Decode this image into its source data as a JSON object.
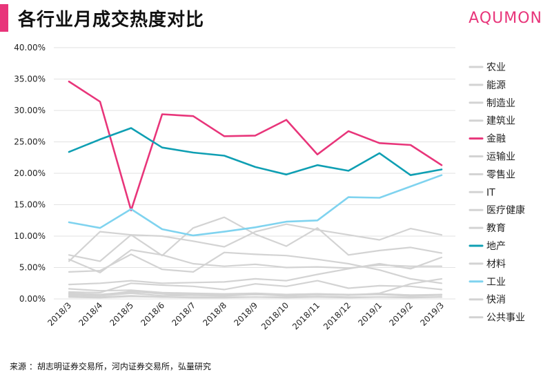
{
  "header": {
    "title": "各行业月成交热度对比",
    "brand": "AQUMON"
  },
  "footer": {
    "source": "来源 ：胡志明证券交易所，河内证券交易所，弘量研究"
  },
  "colors": {
    "accent": "#e8357a",
    "finance": "#e8357a",
    "realestate": "#0f9fb3",
    "industry": "#7fd3ef",
    "other": "#d3d3d3",
    "grid": "#e2e2e2"
  },
  "chart_data": {
    "type": "line",
    "categories": [
      "2018/3",
      "2018/4",
      "2018/5",
      "2018/6",
      "2018/7",
      "2018/8",
      "2018/9",
      "2018/10",
      "2018/11",
      "2018/12",
      "2019/1",
      "2019/2",
      "2019/3"
    ],
    "ylim": [
      0,
      40
    ],
    "yticks": [
      "0.00%",
      "5.00%",
      "10.00%",
      "15.00%",
      "20.00%",
      "25.00%",
      "30.00%",
      "35.00%",
      "40.00%"
    ],
    "legend_position": "right",
    "grid": true,
    "series": [
      {
        "name": "农业",
        "color": "#d3d3d3",
        "values": [
          1.6,
          1.3,
          1.4,
          1.0,
          0.9,
          0.8,
          0.9,
          0.7,
          0.8,
          0.7,
          0.8,
          0.6,
          0.6
        ]
      },
      {
        "name": "能源",
        "color": "#d3d3d3",
        "values": [
          7.0,
          6.0,
          10.2,
          6.9,
          11.3,
          13.0,
          10.3,
          8.4,
          11.3,
          7.0,
          7.7,
          8.2,
          7.3
        ]
      },
      {
        "name": "制造业",
        "color": "#d3d3d3",
        "values": [
          2.3,
          2.5,
          2.9,
          2.5,
          2.6,
          2.7,
          3.2,
          2.9,
          3.9,
          4.8,
          5.6,
          4.8,
          6.6
        ]
      },
      {
        "name": "建筑业",
        "color": "#d3d3d3",
        "values": [
          6.3,
          4.2,
          7.8,
          7.0,
          5.6,
          5.2,
          5.5,
          5.0,
          5.1,
          4.9,
          5.4,
          5.2,
          5.2
        ]
      },
      {
        "name": "金融",
        "color": "#e8357a",
        "values": [
          34.6,
          31.4,
          14.1,
          29.4,
          29.1,
          25.9,
          26.0,
          28.5,
          23.0,
          26.7,
          24.8,
          24.5,
          21.3
        ]
      },
      {
        "name": "运输业",
        "color": "#d3d3d3",
        "values": [
          1.1,
          1.0,
          2.5,
          2.2,
          2.0,
          1.5,
          2.4,
          2.0,
          2.9,
          1.7,
          2.1,
          2.0,
          1.5
        ]
      },
      {
        "name": "零售业",
        "color": "#d3d3d3",
        "values": [
          6.0,
          10.7,
          10.2,
          10.0,
          9.2,
          8.3,
          10.7,
          11.9,
          11.0,
          10.2,
          9.4,
          11.2,
          10.2
        ]
      },
      {
        "name": "IT",
        "color": "#d3d3d3",
        "values": [
          0.6,
          0.5,
          0.9,
          0.5,
          0.6,
          0.5,
          0.7,
          0.6,
          0.7,
          0.6,
          0.7,
          0.5,
          0.6
        ]
      },
      {
        "name": "医疗健康",
        "color": "#d3d3d3",
        "values": [
          0.9,
          0.7,
          1.1,
          0.9,
          0.8,
          0.7,
          0.8,
          0.7,
          0.8,
          0.6,
          0.9,
          2.4,
          3.2
        ]
      },
      {
        "name": "教育",
        "color": "#d3d3d3",
        "values": [
          0.4,
          0.3,
          0.5,
          0.3,
          0.3,
          0.3,
          0.3,
          0.3,
          0.4,
          0.3,
          0.3,
          0.3,
          0.3
        ]
      },
      {
        "name": "地产",
        "color": "#0f9fb3",
        "values": [
          23.4,
          25.4,
          27.2,
          24.1,
          23.3,
          22.8,
          21.0,
          19.8,
          21.3,
          20.4,
          23.2,
          19.7,
          20.6
        ]
      },
      {
        "name": "材料",
        "color": "#d3d3d3",
        "values": [
          4.3,
          4.5,
          7.1,
          4.7,
          4.3,
          7.4,
          7.1,
          6.9,
          6.3,
          5.6,
          4.6,
          3.2,
          2.5
        ]
      },
      {
        "name": "工业",
        "color": "#7fd3ef",
        "values": [
          12.2,
          11.3,
          14.3,
          11.1,
          10.1,
          10.7,
          11.4,
          12.3,
          12.5,
          16.2,
          16.1,
          17.9,
          19.7
        ]
      },
      {
        "name": "快消",
        "color": "#d3d3d3",
        "values": [
          0.8,
          0.6,
          1.2,
          0.8,
          0.6,
          0.6,
          0.7,
          0.5,
          0.7,
          0.6,
          0.8,
          0.6,
          0.7
        ]
      },
      {
        "name": "公共事业",
        "color": "#d3d3d3",
        "values": [
          0.3,
          0.2,
          0.4,
          0.3,
          0.2,
          0.2,
          0.3,
          0.2,
          0.3,
          0.2,
          0.3,
          0.2,
          0.3
        ]
      }
    ]
  }
}
